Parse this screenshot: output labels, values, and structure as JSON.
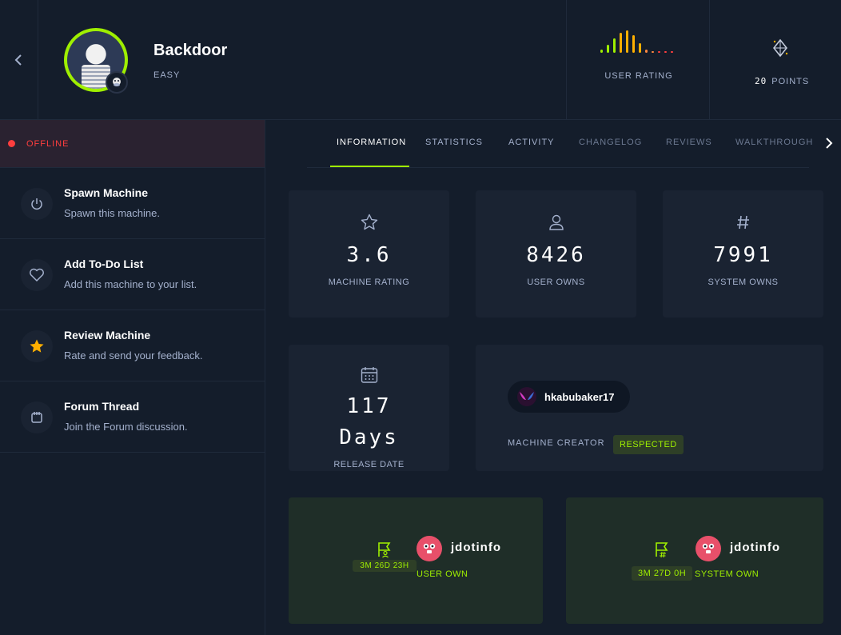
{
  "machine": {
    "name": "Backdoor",
    "difficulty": "EASY",
    "user_rating_label": "USER RATING",
    "points_value": "20",
    "points_label": "POINTS"
  },
  "sidebar": {
    "status": "OFFLINE",
    "actions": [
      {
        "title": "Spawn Machine",
        "subtitle": "Spawn this machine.",
        "icon": "power-icon"
      },
      {
        "title": "Add To-Do List",
        "subtitle": "Add this machine to your list.",
        "icon": "heart-icon"
      },
      {
        "title": "Review Machine",
        "subtitle": "Rate and send your feedback.",
        "icon": "star-icon"
      },
      {
        "title": "Forum Thread",
        "subtitle": "Join the Forum discussion.",
        "icon": "forum-icon"
      }
    ]
  },
  "tabs": [
    "INFORMATION",
    "STATISTICS",
    "ACTIVITY",
    "CHANGELOG",
    "REVIEWS",
    "WALKTHROUGHS"
  ],
  "stats": {
    "rating": {
      "value": "3.6",
      "label": "MACHINE RATING"
    },
    "user_owns": {
      "value": "8426",
      "label": "USER OWNS"
    },
    "system_owns": {
      "value": "7991",
      "label": "SYSTEM OWNS"
    },
    "release": {
      "value_line1": "117",
      "value_line2": "Days",
      "label": "RELEASE DATE"
    }
  },
  "creator": {
    "name": "hkabubaker17",
    "label": "MACHINE CREATOR",
    "badge": "RESPECTED"
  },
  "first_bloods": {
    "user": {
      "name": "jdotinfo",
      "time": "3M 26D 23H",
      "type": "USER OWN"
    },
    "system": {
      "name": "jdotinfo",
      "time": "3M 27D 0H",
      "type": "SYSTEM OWN"
    }
  },
  "colors": {
    "accent": "#9fef00",
    "offline": "#ff3e3e",
    "background": "#141d2b",
    "card": "#1a2332",
    "muted_text": "#a4b1cd"
  }
}
